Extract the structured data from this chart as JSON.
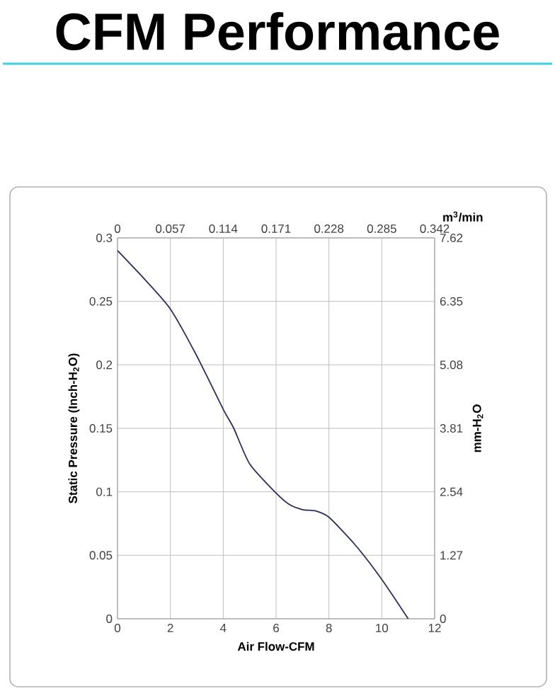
{
  "chart_data": {
    "type": "line",
    "title": "CFM Performance",
    "xlabel": "Air Flow-CFM",
    "ylabel": "Static Pressure (Inch-H$_{2}$O)",
    "y2label": "mm-H$_{2}$O",
    "x2label": "m$^{3}$/min",
    "x": [
      0,
      1,
      2,
      3,
      4,
      4.4,
      5,
      6,
      6.5,
      7,
      7.5,
      8,
      9,
      10,
      11
    ],
    "series": [
      {
        "color": "#2b2d5e",
        "values": [
          0.29,
          0.268,
          0.244,
          0.207,
          0.165,
          0.15,
          0.122,
          0.099,
          0.09,
          0.086,
          0.085,
          0.08,
          0.058,
          0.031,
          0
        ]
      }
    ],
    "xlim": [
      0,
      12
    ],
    "xticks": [
      0,
      2,
      4,
      6,
      8,
      10,
      12
    ],
    "ylim": [
      0,
      0.3
    ],
    "yticks": [
      0,
      0.05,
      0.1,
      0.15,
      0.2,
      0.25,
      0.3
    ],
    "x2lim": [
      0,
      0.342
    ],
    "x2ticks": [
      0,
      0.057,
      0.114,
      0.171,
      0.228,
      0.285,
      0.342
    ],
    "y2lim": [
      0,
      7.62
    ],
    "y2ticks": [
      0,
      1.27,
      2.54,
      3.81,
      5.08,
      6.35,
      7.62
    ],
    "grid": true,
    "line_style": "solid"
  }
}
